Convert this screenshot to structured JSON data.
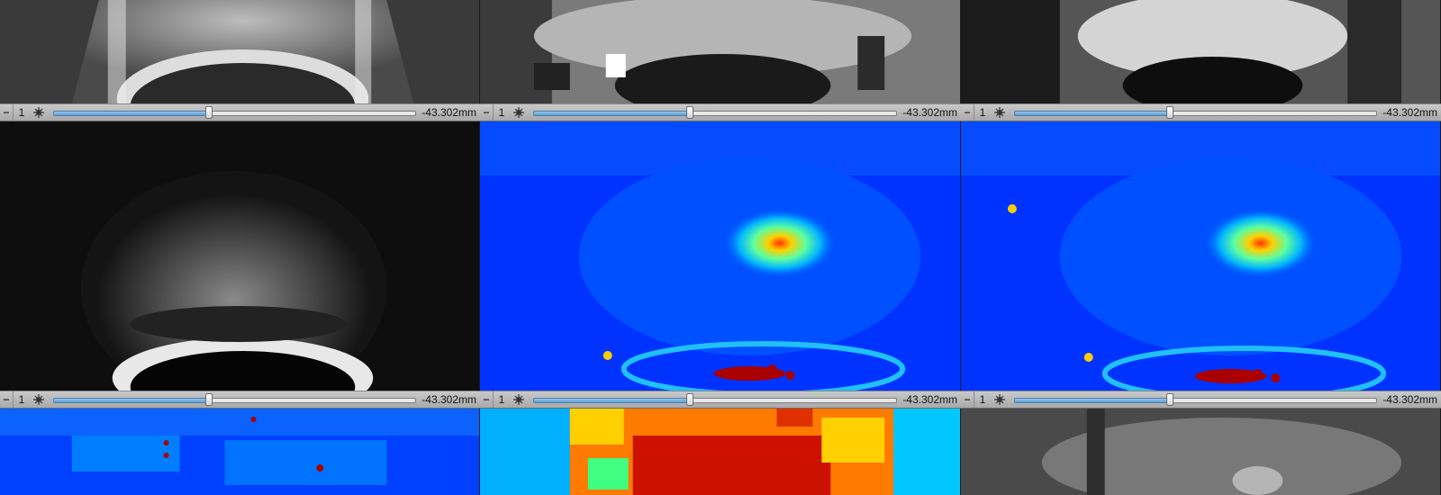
{
  "viewports": [
    {
      "name": "viewport-1",
      "image_icon": "t2-axial-grayscale"
    },
    {
      "name": "viewport-2",
      "image_icon": "adc-map-grayscale"
    },
    {
      "name": "viewport-3",
      "image_icon": "adc-map-grayscale-smooth"
    },
    {
      "name": "viewport-4",
      "image_icon": "dwi-grayscale"
    },
    {
      "name": "viewport-5",
      "image_icon": "dce-jet-colormap"
    },
    {
      "name": "viewport-6",
      "image_icon": "dce-jet-colormap-2"
    },
    {
      "name": "viewport-7",
      "image_icon": "jet-colormap-blue"
    },
    {
      "name": "viewport-8",
      "image_icon": "jet-colormap-red"
    },
    {
      "name": "viewport-9",
      "image_icon": "t2-grayscale"
    }
  ],
  "toolbars": [
    {
      "frame": "1",
      "position": "-43.302mm",
      "slider_fraction": 0.43
    },
    {
      "frame": "1",
      "position": "-43.302mm",
      "slider_fraction": 0.43
    },
    {
      "frame": "1",
      "position": "-43.302mm",
      "slider_fraction": 0.43
    },
    {
      "frame": "1",
      "position": "-43.302mm",
      "slider_fraction": 0.43
    },
    {
      "frame": "1",
      "position": "-43.302mm",
      "slider_fraction": 0.43
    },
    {
      "frame": "1",
      "position": "-43.302mm",
      "slider_fraction": 0.43
    }
  ],
  "colors": {
    "toolbar": "#b8b8b8",
    "slider_fill": "#6aa8dc",
    "jet_blue": "#0033ff",
    "jet_red": "#cc1100"
  }
}
